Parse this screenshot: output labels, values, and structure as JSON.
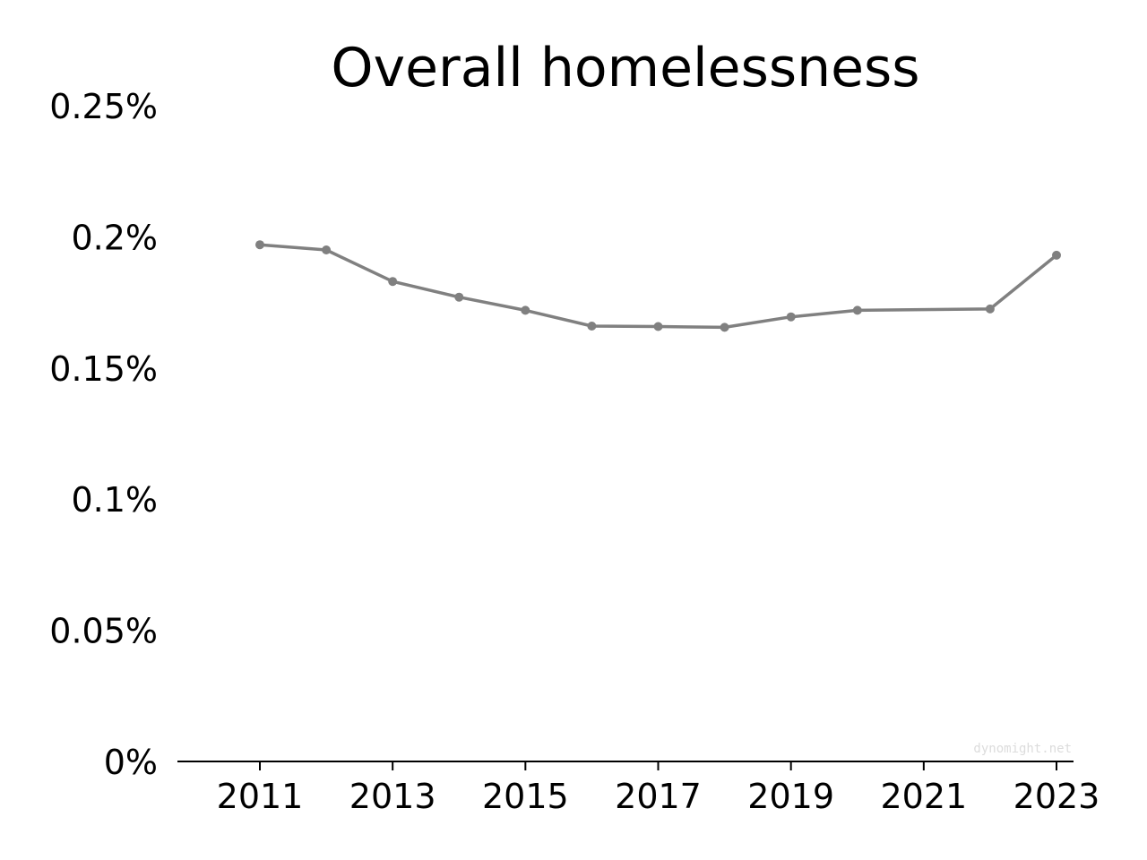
{
  "chart_data": {
    "type": "line",
    "title": "Overall homelessness",
    "xlabel": "",
    "ylabel": "",
    "x": [
      2011,
      2012,
      2013,
      2014,
      2015,
      2016,
      2017,
      2018,
      2019,
      2020,
      2022,
      2023
    ],
    "series": [
      {
        "values": [
          0.197,
          0.195,
          0.183,
          0.177,
          0.172,
          0.166,
          0.1658,
          0.1655,
          0.1695,
          0.172,
          0.1725,
          0.193
        ]
      }
    ],
    "xlim": [
      2011,
      2023
    ],
    "ylim": [
      0,
      0.25
    ],
    "x_ticks": [
      "2011",
      "2013",
      "2015",
      "2017",
      "2019",
      "2021",
      "2023"
    ],
    "x_tick_values": [
      2011,
      2013,
      2015,
      2017,
      2019,
      2021,
      2023
    ],
    "y_ticks": [
      "0%",
      "0.05%",
      "0.1%",
      "0.15%",
      "0.2%",
      "0.25%"
    ],
    "y_tick_values": [
      0,
      0.05,
      0.1,
      0.15,
      0.2,
      0.25
    ],
    "grid": false,
    "line_color": "#808080",
    "watermark": "dynomight.net"
  }
}
